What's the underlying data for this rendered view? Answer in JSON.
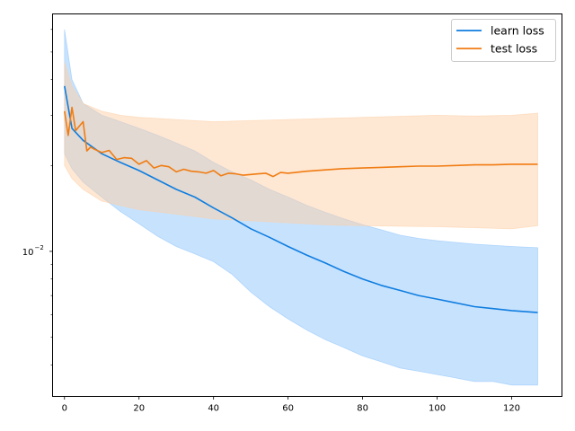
{
  "chart_data": {
    "type": "line",
    "title": "",
    "xlabel": "",
    "ylabel": "",
    "yscale": "log",
    "xlim": [
      -3.2,
      133.5
    ],
    "ylim": [
      0.0031,
      0.068
    ],
    "x_ticks": [
      0,
      20,
      40,
      60,
      80,
      100,
      120
    ],
    "x_tick_labels": [
      "0",
      "20",
      "40",
      "60",
      "80",
      "100",
      "120"
    ],
    "y_major_ticks": [
      0.01
    ],
    "y_tick_labels": [
      "10",
      "−2"
    ],
    "y_minor_ticks": [
      0.004,
      0.005,
      0.006,
      0.007,
      0.008,
      0.009,
      0.02,
      0.03,
      0.04,
      0.05,
      0.06
    ],
    "grid": false,
    "legend_position": "top-right",
    "series": [
      {
        "name": "learn loss",
        "color": "#0f7de0",
        "band_color": "#8fc5fb",
        "points": [
          [
            0,
            0.038
          ],
          [
            2,
            0.027
          ],
          [
            5,
            0.0245
          ],
          [
            10,
            0.022
          ],
          [
            15,
            0.0205
          ],
          [
            20,
            0.0192
          ],
          [
            25,
            0.0178
          ],
          [
            30,
            0.0165
          ],
          [
            35,
            0.0155
          ],
          [
            40,
            0.0142
          ],
          [
            45,
            0.0131
          ],
          [
            50,
            0.012
          ],
          [
            55,
            0.0112
          ],
          [
            60,
            0.0104
          ],
          [
            65,
            0.0097
          ],
          [
            70,
            0.0091
          ],
          [
            75,
            0.0085
          ],
          [
            80,
            0.008
          ],
          [
            85,
            0.0076
          ],
          [
            90,
            0.0073
          ],
          [
            95,
            0.007
          ],
          [
            100,
            0.0068
          ],
          [
            105,
            0.0066
          ],
          [
            110,
            0.0064
          ],
          [
            115,
            0.0063
          ],
          [
            120,
            0.0062
          ],
          [
            127,
            0.0061
          ]
        ],
        "band_upper": [
          [
            0,
            0.06
          ],
          [
            2,
            0.04
          ],
          [
            5,
            0.033
          ],
          [
            10,
            0.03
          ],
          [
            15,
            0.0285
          ],
          [
            20,
            0.027
          ],
          [
            25,
            0.0255
          ],
          [
            30,
            0.024
          ],
          [
            35,
            0.0225
          ],
          [
            40,
            0.0205
          ],
          [
            45,
            0.019
          ],
          [
            50,
            0.0178
          ],
          [
            55,
            0.0165
          ],
          [
            60,
            0.0155
          ],
          [
            65,
            0.0145
          ],
          [
            70,
            0.0137
          ],
          [
            75,
            0.013
          ],
          [
            80,
            0.0124
          ],
          [
            85,
            0.0119
          ],
          [
            90,
            0.0114
          ],
          [
            95,
            0.0111
          ],
          [
            100,
            0.0109
          ],
          [
            110,
            0.0106
          ],
          [
            120,
            0.0104
          ],
          [
            127,
            0.0103
          ]
        ],
        "band_lower": [
          [
            0,
            0.022
          ],
          [
            2,
            0.0195
          ],
          [
            5,
            0.0175
          ],
          [
            10,
            0.0155
          ],
          [
            15,
            0.0138
          ],
          [
            20,
            0.0125
          ],
          [
            25,
            0.0113
          ],
          [
            30,
            0.0104
          ],
          [
            35,
            0.0098
          ],
          [
            40,
            0.0092
          ],
          [
            45,
            0.0083
          ],
          [
            50,
            0.0072
          ],
          [
            55,
            0.0064
          ],
          [
            60,
            0.0058
          ],
          [
            65,
            0.0053
          ],
          [
            70,
            0.0049
          ],
          [
            75,
            0.0046
          ],
          [
            80,
            0.0043
          ],
          [
            85,
            0.0041
          ],
          [
            90,
            0.0039
          ],
          [
            95,
            0.0038
          ],
          [
            100,
            0.0037
          ],
          [
            105,
            0.0036
          ],
          [
            110,
            0.0035
          ],
          [
            115,
            0.0035
          ],
          [
            120,
            0.0034
          ],
          [
            127,
            0.0034
          ]
        ]
      },
      {
        "name": "test loss",
        "color": "#f07c12",
        "band_color": "#fdd0a8",
        "points": [
          [
            0,
            0.031
          ],
          [
            1,
            0.0255
          ],
          [
            2,
            0.032
          ],
          [
            3,
            0.0265
          ],
          [
            4,
            0.0275
          ],
          [
            5,
            0.0285
          ],
          [
            6,
            0.0225
          ],
          [
            7,
            0.0232
          ],
          [
            8,
            0.0228
          ],
          [
            10,
            0.0222
          ],
          [
            12,
            0.0226
          ],
          [
            14,
            0.021
          ],
          [
            16,
            0.0213
          ],
          [
            18,
            0.0212
          ],
          [
            20,
            0.0202
          ],
          [
            22,
            0.0208
          ],
          [
            24,
            0.0196
          ],
          [
            26,
            0.02
          ],
          [
            28,
            0.0198
          ],
          [
            30,
            0.019
          ],
          [
            32,
            0.0194
          ],
          [
            34,
            0.0191
          ],
          [
            36,
            0.019
          ],
          [
            38,
            0.0188
          ],
          [
            40,
            0.0192
          ],
          [
            42,
            0.0184
          ],
          [
            44,
            0.0188
          ],
          [
            46,
            0.0187
          ],
          [
            48,
            0.0185
          ],
          [
            50,
            0.0186
          ],
          [
            52,
            0.0187
          ],
          [
            54,
            0.0188
          ],
          [
            56,
            0.0183
          ],
          [
            58,
            0.0189
          ],
          [
            60,
            0.0188
          ],
          [
            65,
            0.0191
          ],
          [
            70,
            0.0193
          ],
          [
            75,
            0.0195
          ],
          [
            80,
            0.0196
          ],
          [
            85,
            0.0197
          ],
          [
            90,
            0.0198
          ],
          [
            95,
            0.0199
          ],
          [
            100,
            0.0199
          ],
          [
            105,
            0.02
          ],
          [
            110,
            0.0201
          ],
          [
            115,
            0.0201
          ],
          [
            120,
            0.0202
          ],
          [
            127,
            0.0202
          ]
        ],
        "band_upper": [
          [
            0,
            0.046
          ],
          [
            2,
            0.038
          ],
          [
            5,
            0.033
          ],
          [
            10,
            0.031
          ],
          [
            15,
            0.03
          ],
          [
            20,
            0.0295
          ],
          [
            30,
            0.029
          ],
          [
            40,
            0.0285
          ],
          [
            60,
            0.029
          ],
          [
            80,
            0.0295
          ],
          [
            100,
            0.03
          ],
          [
            110,
            0.0298
          ],
          [
            120,
            0.03
          ],
          [
            127,
            0.0305
          ]
        ],
        "band_lower": [
          [
            0,
            0.02
          ],
          [
            2,
            0.018
          ],
          [
            5,
            0.0165
          ],
          [
            10,
            0.015
          ],
          [
            15,
            0.0145
          ],
          [
            20,
            0.014
          ],
          [
            30,
            0.0135
          ],
          [
            40,
            0.013
          ],
          [
            50,
            0.0128
          ],
          [
            60,
            0.0126
          ],
          [
            70,
            0.0124
          ],
          [
            80,
            0.0123
          ],
          [
            100,
            0.0122
          ],
          [
            110,
            0.0121
          ],
          [
            120,
            0.012
          ],
          [
            127,
            0.0123
          ]
        ]
      }
    ]
  }
}
